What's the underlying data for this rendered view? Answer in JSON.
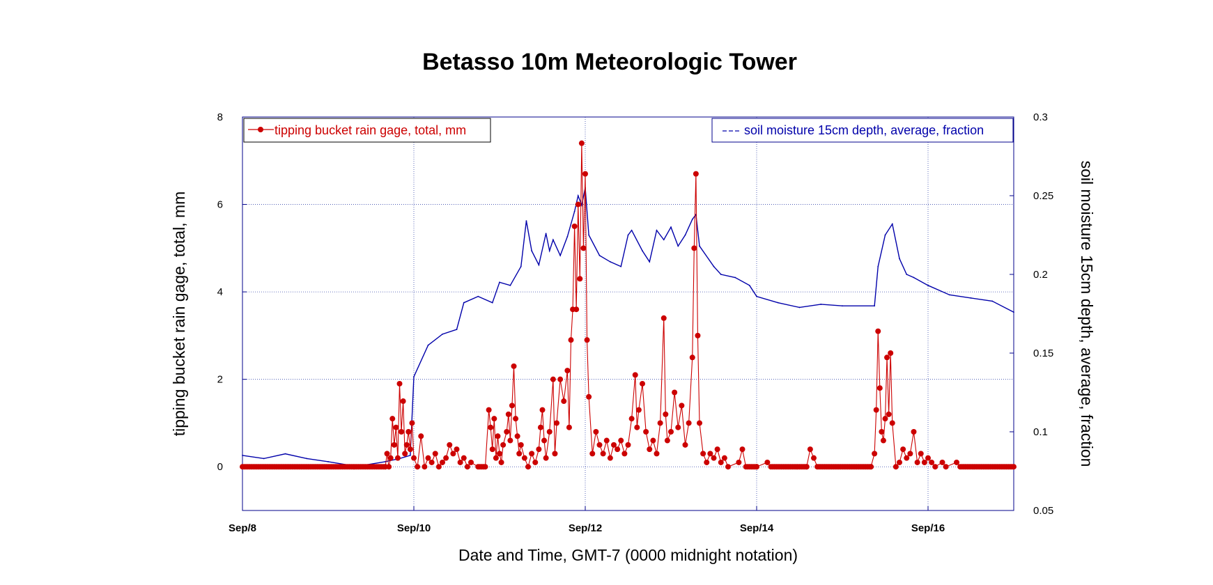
{
  "chart_data": {
    "type": "line",
    "title": "Betasso 10m Meteorologic Tower",
    "xlabel": "Date and Time, GMT-7 (0000 midnight notation)",
    "x_unit": "days",
    "xlim": [
      "Sep/8",
      "Sep/17"
    ],
    "x_tick_labels": [
      "Sep/8",
      "Sep/10",
      "Sep/12",
      "Sep/14",
      "Sep/16"
    ],
    "y_left": {
      "label": "tipping bucket rain gage, total, mm",
      "ylim": [
        -1,
        8
      ],
      "ticks": [
        "0",
        "2",
        "4",
        "6",
        "8"
      ]
    },
    "y_right": {
      "label": "soil moisture 15cm depth, average, fraction",
      "ylim": [
        0.05,
        0.3
      ],
      "ticks": [
        "0.05",
        "0.1",
        "0.15",
        "0.2",
        "0.25",
        "0.3"
      ]
    },
    "grid": true,
    "legend": [
      {
        "name": "tipping bucket rain gage, total, mm",
        "placement": "top-left",
        "color": "#cc0000",
        "marker": "circle"
      },
      {
        "name": "soil moisture 15cm depth, average, fraction",
        "placement": "top-right",
        "color": "#0000aa",
        "marker": "dash"
      }
    ],
    "series": [
      {
        "name": "tipping bucket rain gage, total, mm",
        "axis": "left",
        "color": "#cc0000",
        "points": [
          [
            "Sep/8 00:00",
            0
          ],
          [
            "Sep/9 16:00",
            0
          ],
          [
            "Sep/9 16:30",
            0.3
          ],
          [
            "Sep/9 17:00",
            0
          ],
          [
            "Sep/9 17:30",
            0.2
          ],
          [
            "Sep/9 18:00",
            1.1
          ],
          [
            "Sep/9 18:30",
            0.5
          ],
          [
            "Sep/9 19:00",
            0.9
          ],
          [
            "Sep/9 19:30",
            0.2
          ],
          [
            "Sep/9 20:00",
            1.9
          ],
          [
            "Sep/9 20:30",
            0.8
          ],
          [
            "Sep/9 21:00",
            1.5
          ],
          [
            "Sep/9 21:30",
            0.3
          ],
          [
            "Sep/9 22:00",
            0.5
          ],
          [
            "Sep/9 22:30",
            0.8
          ],
          [
            "Sep/9 23:00",
            0.4
          ],
          [
            "Sep/9 23:30",
            1.0
          ],
          [
            "Sep/10 00:00",
            0.2
          ],
          [
            "Sep/10 01:00",
            0
          ],
          [
            "Sep/10 02:00",
            0.7
          ],
          [
            "Sep/10 03:00",
            0
          ],
          [
            "Sep/10 04:00",
            0.2
          ],
          [
            "Sep/10 05:00",
            0.1
          ],
          [
            "Sep/10 06:00",
            0.3
          ],
          [
            "Sep/10 07:00",
            0
          ],
          [
            "Sep/10 08:00",
            0.1
          ],
          [
            "Sep/10 09:00",
            0.2
          ],
          [
            "Sep/10 10:00",
            0.5
          ],
          [
            "Sep/10 11:00",
            0.3
          ],
          [
            "Sep/10 12:00",
            0.4
          ],
          [
            "Sep/10 13:00",
            0.1
          ],
          [
            "Sep/10 14:00",
            0.2
          ],
          [
            "Sep/10 15:00",
            0
          ],
          [
            "Sep/10 16:00",
            0.1
          ],
          [
            "Sep/10 18:00",
            0
          ],
          [
            "Sep/10 20:00",
            0
          ],
          [
            "Sep/10 21:00",
            1.3
          ],
          [
            "Sep/10 21:30",
            0.9
          ],
          [
            "Sep/10 22:00",
            0.4
          ],
          [
            "Sep/10 22:30",
            1.1
          ],
          [
            "Sep/10 23:00",
            0.2
          ],
          [
            "Sep/10 23:30",
            0.7
          ],
          [
            "Sep/11 00:00",
            0.3
          ],
          [
            "Sep/11 00:30",
            0.1
          ],
          [
            "Sep/11 01:00",
            0.5
          ],
          [
            "Sep/11 02:00",
            0.8
          ],
          [
            "Sep/11 02:30",
            1.2
          ],
          [
            "Sep/11 03:00",
            0.6
          ],
          [
            "Sep/11 03:30",
            1.4
          ],
          [
            "Sep/11 04:00",
            2.3
          ],
          [
            "Sep/11 04:30",
            1.1
          ],
          [
            "Sep/11 05:00",
            0.7
          ],
          [
            "Sep/11 05:30",
            0.3
          ],
          [
            "Sep/11 06:00",
            0.5
          ],
          [
            "Sep/11 07:00",
            0.2
          ],
          [
            "Sep/11 08:00",
            0
          ],
          [
            "Sep/11 09:00",
            0.3
          ],
          [
            "Sep/11 10:00",
            0.1
          ],
          [
            "Sep/11 11:00",
            0.4
          ],
          [
            "Sep/11 11:30",
            0.9
          ],
          [
            "Sep/11 12:00",
            1.3
          ],
          [
            "Sep/11 12:30",
            0.6
          ],
          [
            "Sep/11 13:00",
            0.2
          ],
          [
            "Sep/11 14:00",
            0.8
          ],
          [
            "Sep/11 15:00",
            2.0
          ],
          [
            "Sep/11 15:30",
            0.3
          ],
          [
            "Sep/11 16:00",
            1.0
          ],
          [
            "Sep/11 17:00",
            2.0
          ],
          [
            "Sep/11 18:00",
            1.5
          ],
          [
            "Sep/11 19:00",
            2.2
          ],
          [
            "Sep/11 19:30",
            0.9
          ],
          [
            "Sep/11 20:00",
            2.9
          ],
          [
            "Sep/11 20:30",
            3.6
          ],
          [
            "Sep/11 21:00",
            5.5
          ],
          [
            "Sep/11 21:30",
            3.6
          ],
          [
            "Sep/11 22:00",
            6.0
          ],
          [
            "Sep/11 22:30",
            4.3
          ],
          [
            "Sep/11 23:00",
            7.4
          ],
          [
            "Sep/11 23:30",
            5.0
          ],
          [
            "Sep/12 00:00",
            6.7
          ],
          [
            "Sep/12 00:30",
            2.9
          ],
          [
            "Sep/12 01:00",
            1.6
          ],
          [
            "Sep/12 02:00",
            0.3
          ],
          [
            "Sep/12 03:00",
            0.8
          ],
          [
            "Sep/12 04:00",
            0.5
          ],
          [
            "Sep/12 05:00",
            0.3
          ],
          [
            "Sep/12 06:00",
            0.6
          ],
          [
            "Sep/12 07:00",
            0.2
          ],
          [
            "Sep/12 08:00",
            0.5
          ],
          [
            "Sep/12 09:00",
            0.4
          ],
          [
            "Sep/12 10:00",
            0.6
          ],
          [
            "Sep/12 11:00",
            0.3
          ],
          [
            "Sep/12 12:00",
            0.5
          ],
          [
            "Sep/12 13:00",
            1.1
          ],
          [
            "Sep/12 14:00",
            2.1
          ],
          [
            "Sep/12 14:30",
            0.9
          ],
          [
            "Sep/12 15:00",
            1.3
          ],
          [
            "Sep/12 16:00",
            1.9
          ],
          [
            "Sep/12 17:00",
            0.8
          ],
          [
            "Sep/12 18:00",
            0.4
          ],
          [
            "Sep/12 19:00",
            0.6
          ],
          [
            "Sep/12 20:00",
            0.3
          ],
          [
            "Sep/12 21:00",
            1.0
          ],
          [
            "Sep/12 22:00",
            3.4
          ],
          [
            "Sep/12 22:30",
            1.2
          ],
          [
            "Sep/12 23:00",
            0.6
          ],
          [
            "Sep/13 00:00",
            0.8
          ],
          [
            "Sep/13 01:00",
            1.7
          ],
          [
            "Sep/13 02:00",
            0.9
          ],
          [
            "Sep/13 03:00",
            1.4
          ],
          [
            "Sep/13 04:00",
            0.5
          ],
          [
            "Sep/13 05:00",
            1.0
          ],
          [
            "Sep/13 06:00",
            2.5
          ],
          [
            "Sep/13 06:30",
            5.0
          ],
          [
            "Sep/13 07:00",
            6.7
          ],
          [
            "Sep/13 07:30",
            3.0
          ],
          [
            "Sep/13 08:00",
            1.0
          ],
          [
            "Sep/13 09:00",
            0.3
          ],
          [
            "Sep/13 10:00",
            0.1
          ],
          [
            "Sep/13 11:00",
            0.3
          ],
          [
            "Sep/13 12:00",
            0.2
          ],
          [
            "Sep/13 13:00",
            0.4
          ],
          [
            "Sep/13 14:00",
            0.1
          ],
          [
            "Sep/13 15:00",
            0.2
          ],
          [
            "Sep/13 16:00",
            0
          ],
          [
            "Sep/13 19:00",
            0.1
          ],
          [
            "Sep/13 20:00",
            0.4
          ],
          [
            "Sep/13 21:00",
            0
          ],
          [
            "Sep/14 00:00",
            0
          ],
          [
            "Sep/14 03:00",
            0.1
          ],
          [
            "Sep/14 04:00",
            0
          ],
          [
            "Sep/14 14:00",
            0
          ],
          [
            "Sep/14 15:00",
            0.4
          ],
          [
            "Sep/14 16:00",
            0.2
          ],
          [
            "Sep/14 17:00",
            0
          ],
          [
            "Sep/15 08:00",
            0
          ],
          [
            "Sep/15 09:00",
            0.3
          ],
          [
            "Sep/15 09:30",
            1.3
          ],
          [
            "Sep/15 10:00",
            3.1
          ],
          [
            "Sep/15 10:30",
            1.8
          ],
          [
            "Sep/15 11:00",
            0.8
          ],
          [
            "Sep/15 11:30",
            0.6
          ],
          [
            "Sep/15 12:00",
            1.1
          ],
          [
            "Sep/15 12:30",
            2.5
          ],
          [
            "Sep/15 13:00",
            1.2
          ],
          [
            "Sep/15 13:30",
            2.6
          ],
          [
            "Sep/15 14:00",
            1.0
          ],
          [
            "Sep/15 15:00",
            0
          ],
          [
            "Sep/15 16:00",
            0.1
          ],
          [
            "Sep/15 17:00",
            0.4
          ],
          [
            "Sep/15 18:00",
            0.2
          ],
          [
            "Sep/15 19:00",
            0.3
          ],
          [
            "Sep/15 20:00",
            0.8
          ],
          [
            "Sep/15 21:00",
            0.1
          ],
          [
            "Sep/15 22:00",
            0.3
          ],
          [
            "Sep/15 23:00",
            0.1
          ],
          [
            "Sep/16 00:00",
            0.2
          ],
          [
            "Sep/16 01:00",
            0.1
          ],
          [
            "Sep/16 02:00",
            0
          ],
          [
            "Sep/16 04:00",
            0.1
          ],
          [
            "Sep/16 05:00",
            0
          ],
          [
            "Sep/16 08:00",
            0.1
          ],
          [
            "Sep/16 09:00",
            0
          ],
          [
            "Sep/17 00:00",
            0
          ]
        ]
      },
      {
        "name": "soil moisture 15cm depth, average, fraction",
        "axis": "right",
        "color": "#0000aa",
        "points": [
          [
            "Sep/8 00:00",
            0.085
          ],
          [
            "Sep/8 06:00",
            0.083
          ],
          [
            "Sep/8 12:00",
            0.086
          ],
          [
            "Sep/8 18:00",
            0.083
          ],
          [
            "Sep/9 00:00",
            0.081
          ],
          [
            "Sep/9 08:00",
            0.078
          ],
          [
            "Sep/9 16:00",
            0.081
          ],
          [
            "Sep/9 20:00",
            0.083
          ],
          [
            "Sep/9 23:00",
            0.085
          ],
          [
            "Sep/10 00:00",
            0.135
          ],
          [
            "Sep/10 04:00",
            0.155
          ],
          [
            "Sep/10 08:00",
            0.162
          ],
          [
            "Sep/10 12:00",
            0.165
          ],
          [
            "Sep/10 14:00",
            0.182
          ],
          [
            "Sep/10 18:00",
            0.186
          ],
          [
            "Sep/10 22:00",
            0.182
          ],
          [
            "Sep/11 00:00",
            0.195
          ],
          [
            "Sep/11 03:00",
            0.193
          ],
          [
            "Sep/11 06:00",
            0.205
          ],
          [
            "Sep/11 07:30",
            0.234
          ],
          [
            "Sep/11 09:00",
            0.215
          ],
          [
            "Sep/11 11:00",
            0.206
          ],
          [
            "Sep/11 13:00",
            0.226
          ],
          [
            "Sep/11 14:00",
            0.215
          ],
          [
            "Sep/11 15:00",
            0.222
          ],
          [
            "Sep/11 17:00",
            0.212
          ],
          [
            "Sep/11 19:00",
            0.224
          ],
          [
            "Sep/11 21:00",
            0.24
          ],
          [
            "Sep/11 22:00",
            0.25
          ],
          [
            "Sep/11 23:00",
            0.244
          ],
          [
            "Sep/12 00:00",
            0.255
          ],
          [
            "Sep/12 01:00",
            0.225
          ],
          [
            "Sep/12 04:00",
            0.212
          ],
          [
            "Sep/12 07:00",
            0.208
          ],
          [
            "Sep/12 10:00",
            0.205
          ],
          [
            "Sep/12 12:00",
            0.225
          ],
          [
            "Sep/12 13:00",
            0.228
          ],
          [
            "Sep/12 16:00",
            0.215
          ],
          [
            "Sep/12 18:00",
            0.208
          ],
          [
            "Sep/12 20:00",
            0.228
          ],
          [
            "Sep/12 22:00",
            0.222
          ],
          [
            "Sep/13 00:00",
            0.23
          ],
          [
            "Sep/13 02:00",
            0.218
          ],
          [
            "Sep/13 04:00",
            0.225
          ],
          [
            "Sep/13 06:00",
            0.235
          ],
          [
            "Sep/13 07:00",
            0.238
          ],
          [
            "Sep/13 08:00",
            0.218
          ],
          [
            "Sep/13 12:00",
            0.205
          ],
          [
            "Sep/13 14:00",
            0.2
          ],
          [
            "Sep/13 18:00",
            0.198
          ],
          [
            "Sep/13 22:00",
            0.193
          ],
          [
            "Sep/14 00:00",
            0.186
          ],
          [
            "Sep/14 06:00",
            0.182
          ],
          [
            "Sep/14 12:00",
            0.179
          ],
          [
            "Sep/14 18:00",
            0.181
          ],
          [
            "Sep/15 00:00",
            0.18
          ],
          [
            "Sep/15 09:00",
            0.18
          ],
          [
            "Sep/15 10:00",
            0.205
          ],
          [
            "Sep/15 12:00",
            0.225
          ],
          [
            "Sep/15 14:00",
            0.232
          ],
          [
            "Sep/15 16:00",
            0.21
          ],
          [
            "Sep/15 18:00",
            0.2
          ],
          [
            "Sep/15 20:00",
            0.198
          ],
          [
            "Sep/16 00:00",
            0.193
          ],
          [
            "Sep/16 06:00",
            0.187
          ],
          [
            "Sep/16 12:00",
            0.185
          ],
          [
            "Sep/16 18:00",
            0.183
          ],
          [
            "Sep/17 00:00",
            0.176
          ]
        ]
      }
    ]
  }
}
